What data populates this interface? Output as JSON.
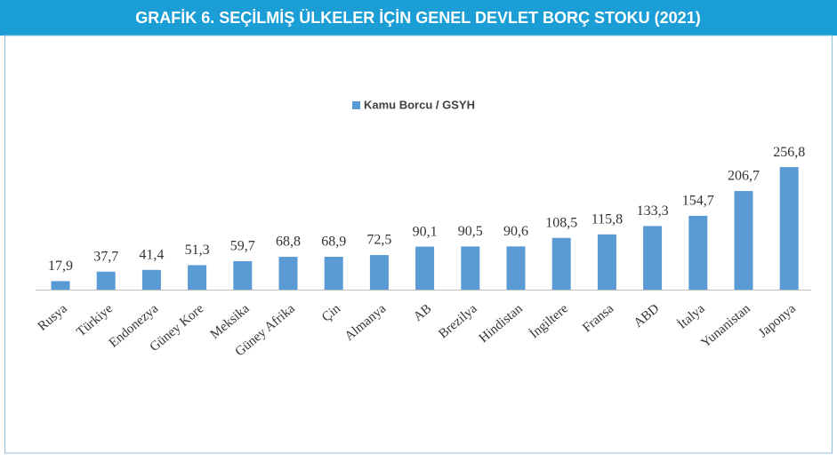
{
  "chart_data": {
    "type": "bar",
    "title": "GRAFİK 6. SEÇİLMİŞ ÜLKELER İÇİN GENEL DEVLET BORÇ STOKU (2021)",
    "categories": [
      "Rusya",
      "Türkiye",
      "Endonezya",
      "Güney Kore",
      "Meksika",
      "Güney Afrika",
      "Çin",
      "Almanya",
      "AB",
      "Brezilya",
      "Hindistan",
      "İngiltere",
      "Fransa",
      "ABD",
      "İtalya",
      "Yunanistan",
      "Japonya"
    ],
    "series": [
      {
        "name": "Kamu Borcu / GSYH",
        "color": "#5b9bd5",
        "values": [
          17.9,
          37.7,
          41.4,
          51.3,
          59.7,
          68.8,
          68.9,
          72.5,
          90.1,
          90.5,
          90.6,
          108.5,
          115.8,
          133.3,
          154.7,
          206.7,
          256.8
        ],
        "value_labels": [
          "17,9",
          "37,7",
          "41,4",
          "51,3",
          "59,7",
          "68,8",
          "68,9",
          "72,5",
          "90,1",
          "90,5",
          "90,6",
          "108,5",
          "115,8",
          "133,3",
          "154,7",
          "206,7",
          "256,8"
        ]
      }
    ],
    "legend": "top"
  }
}
